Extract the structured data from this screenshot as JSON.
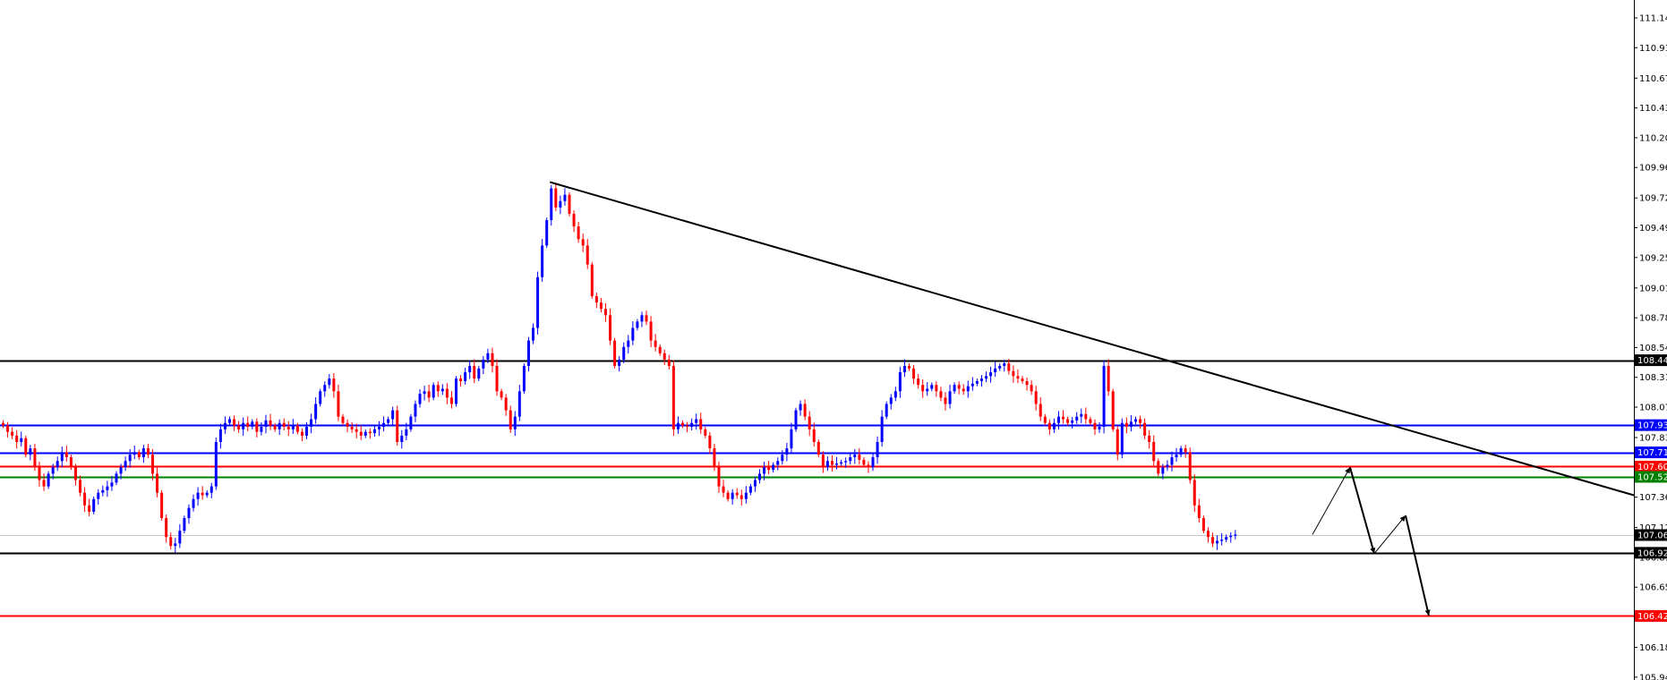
{
  "chart_data": {
    "type": "candlestick",
    "title": "",
    "xlabel": "",
    "ylabel": "",
    "ylim": [
      105.85,
      111.3
    ],
    "y_ticks": [
      "111.145",
      "110.910",
      "110.670",
      "110.435",
      "110.200",
      "109.965",
      "109.725",
      "109.490",
      "109.255",
      "109.015",
      "108.780",
      "108.545",
      "108.310",
      "108.075",
      "107.835",
      "107.600",
      "107.365",
      "107.125",
      "106.890",
      "106.655",
      "106.420",
      "106.180",
      "105.945"
    ],
    "price_labels": [
      {
        "text": "108.445",
        "value": 108.445,
        "color": "#000000",
        "line": true
      },
      {
        "text": "107.933",
        "value": 107.933,
        "color": "#0000ff",
        "line": true
      },
      {
        "text": "107.718",
        "value": 107.718,
        "color": "#0000ff",
        "line": true
      },
      {
        "text": "107.606",
        "value": 107.606,
        "color": "#ff0000",
        "line": true
      },
      {
        "text": "107.525",
        "value": 107.525,
        "color": "#008000",
        "line": true
      },
      {
        "text": "107.066",
        "value": 107.066,
        "color": "#000000",
        "line": false,
        "current": true
      },
      {
        "text": "106.926",
        "value": 106.926,
        "color": "#000000",
        "line": true
      },
      {
        "text": "106.428",
        "value": 106.428,
        "color": "#ff0000",
        "line": true
      }
    ],
    "candle_colors": {
      "up": "#0000ff",
      "down": "#ff0000"
    },
    "candles_close": [
      107.93,
      107.88,
      107.85,
      107.8,
      107.83,
      107.7,
      107.75,
      107.6,
      107.5,
      107.45,
      107.55,
      107.6,
      107.65,
      107.72,
      107.68,
      107.6,
      107.5,
      107.4,
      107.3,
      107.25,
      107.35,
      107.4,
      107.42,
      107.45,
      107.48,
      107.55,
      107.6,
      107.65,
      107.7,
      107.72,
      107.68,
      107.75,
      107.7,
      107.55,
      107.4,
      107.2,
      107.05,
      106.98,
      107.0,
      107.1,
      107.2,
      107.28,
      107.35,
      107.4,
      107.38,
      107.4,
      107.45,
      107.8,
      107.9,
      107.95,
      107.98,
      107.93,
      107.9,
      107.95,
      107.92,
      107.96,
      107.88,
      107.92,
      107.97,
      107.93,
      107.9,
      107.95,
      107.92,
      107.9,
      107.93,
      107.88,
      107.85,
      107.92,
      107.98,
      108.1,
      108.2,
      108.25,
      108.3,
      108.2,
      108.0,
      107.95,
      107.92,
      107.9,
      107.88,
      107.85,
      107.88,
      107.87,
      107.9,
      107.92,
      107.95,
      107.98,
      108.05,
      107.8,
      107.85,
      107.9,
      108.0,
      108.1,
      108.18,
      108.2,
      108.15,
      108.25,
      108.2,
      108.22,
      108.15,
      108.1,
      108.3,
      108.28,
      108.35,
      108.4,
      108.3,
      108.38,
      108.45,
      108.5,
      108.4,
      108.2,
      108.15,
      108.05,
      107.9,
      108.0,
      108.2,
      108.4,
      108.6,
      108.7,
      109.1,
      109.35,
      109.55,
      109.8,
      109.65,
      109.7,
      109.75,
      109.6,
      109.5,
      109.4,
      109.35,
      109.2,
      108.95,
      108.9,
      108.85,
      108.8,
      108.6,
      108.4,
      108.45,
      108.55,
      108.6,
      108.7,
      108.75,
      108.8,
      108.75,
      108.6,
      108.55,
      108.5,
      108.45,
      108.4,
      107.9,
      107.95,
      107.93,
      107.92,
      107.95,
      107.98,
      107.9,
      107.85,
      107.75,
      107.6,
      107.45,
      107.4,
      107.35,
      107.4,
      107.38,
      107.35,
      107.4,
      107.45,
      107.5,
      107.55,
      107.6,
      107.58,
      107.62,
      107.65,
      107.7,
      107.75,
      107.9,
      108.05,
      108.1,
      108.0,
      107.9,
      107.8,
      107.7,
      107.6,
      107.65,
      107.62,
      107.63,
      107.64,
      107.65,
      107.68,
      107.7,
      107.66,
      107.62,
      107.6,
      107.68,
      107.8,
      108.0,
      108.1,
      108.15,
      108.2,
      108.35,
      108.4,
      108.38,
      108.3,
      108.25,
      108.2,
      108.22,
      108.25,
      108.2,
      108.15,
      108.1,
      108.2,
      108.25,
      108.22,
      108.2,
      108.24,
      108.26,
      108.28,
      108.3,
      108.32,
      108.35,
      108.38,
      108.4,
      108.42,
      108.36,
      108.32,
      108.3,
      108.28,
      108.25,
      108.2,
      108.1,
      108.0,
      107.95,
      107.9,
      107.95,
      108.0,
      107.98,
      107.95,
      107.97,
      108.0,
      108.02,
      107.98,
      107.95,
      107.9,
      107.92,
      108.4,
      108.2,
      107.9,
      107.7,
      107.95,
      107.92,
      107.96,
      107.98,
      107.95,
      107.85,
      107.8,
      107.65,
      107.55,
      107.6,
      107.62,
      107.68,
      107.7,
      107.75,
      107.72,
      107.5,
      107.3,
      107.2,
      107.1,
      107.05,
      107.0,
      107.02,
      107.03,
      107.05,
      107.06,
      107.07
    ]
  },
  "annotations": {
    "trendline": {
      "from_price": 109.85,
      "to_price": 107.38,
      "color": "#000000"
    },
    "projection_path": {
      "color": "#000000",
      "prices": [
        107.07,
        107.6,
        106.92,
        107.22,
        106.43
      ]
    }
  }
}
